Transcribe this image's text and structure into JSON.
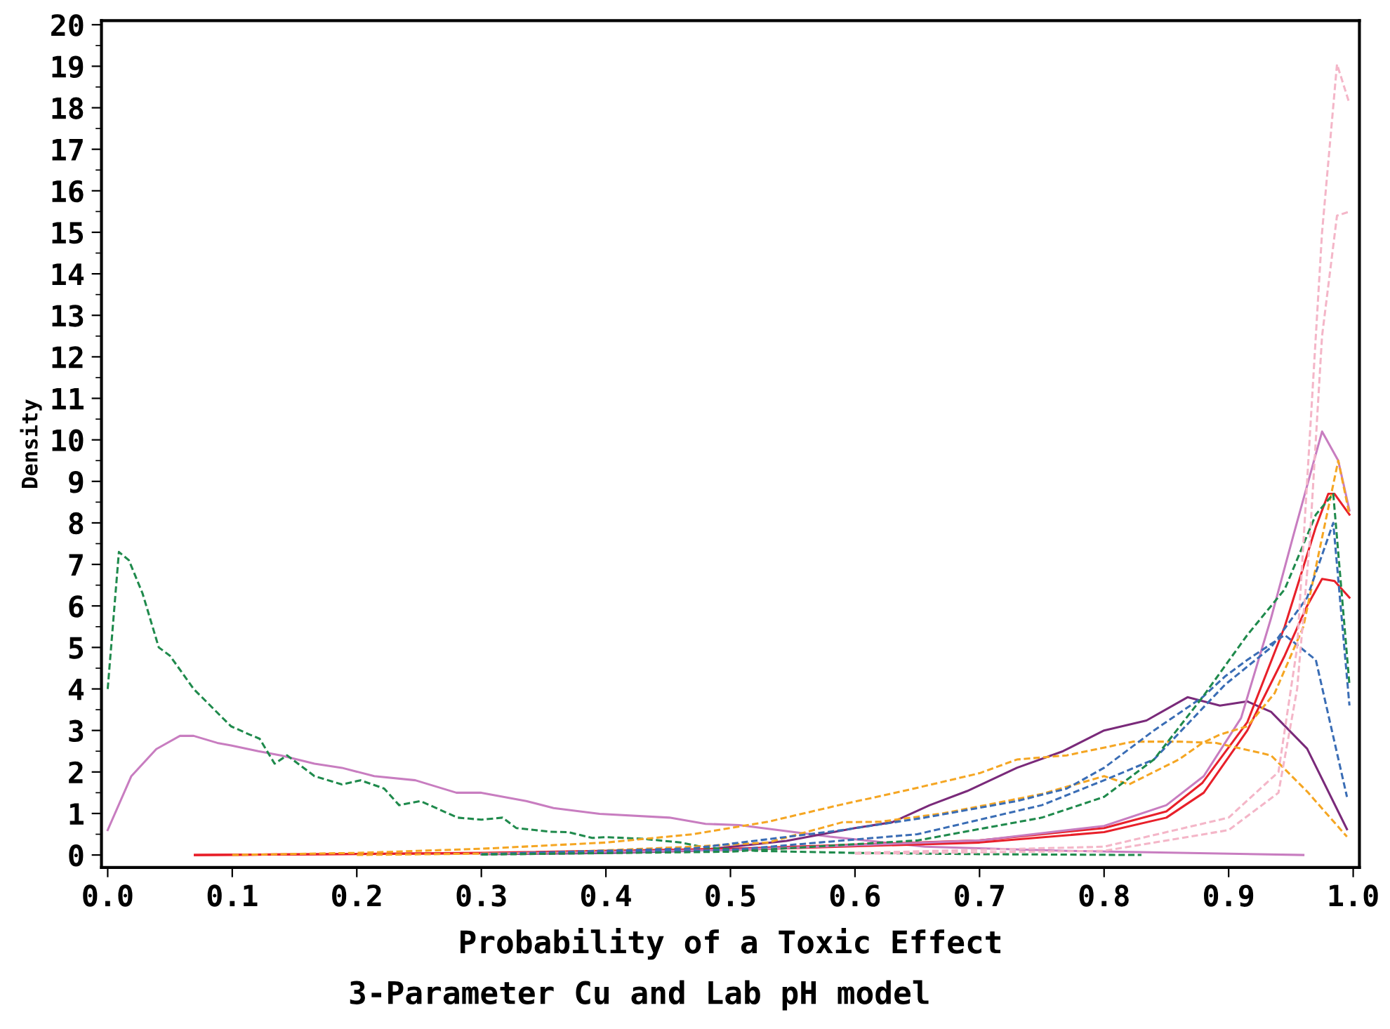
{
  "chart_data": {
    "type": "line",
    "title": "3-Parameter Cu and Lab pH model",
    "xlabel": "Probability of a Toxic Effect",
    "ylabel": "Density",
    "xlim": [
      -0.005,
      1.005
    ],
    "ylim": [
      -0.3,
      20.1
    ],
    "xticks": [
      {
        "value": 0,
        "label": "0.0"
      },
      0.1,
      0.2,
      0.3,
      0.4,
      0.5,
      0.6,
      0.7,
      0.8,
      0.9,
      {
        "value": 1,
        "label": "1.0"
      }
    ],
    "yticks": [
      0,
      1,
      2,
      3,
      4,
      5,
      6,
      7,
      8,
      9,
      10,
      11,
      12,
      13,
      14,
      15,
      16,
      17,
      18,
      19,
      20
    ],
    "grid": false,
    "legend": false,
    "marker": "none",
    "series": [
      {
        "color": "#1f8a4c",
        "line_style": "dashed",
        "x": [
          0.0,
          0.009,
          0.017,
          0.028,
          0.041,
          0.05,
          0.069,
          0.099,
          0.114,
          0.122,
          0.134,
          0.144,
          0.166,
          0.188,
          0.203,
          0.222,
          0.234,
          0.251,
          0.281,
          0.3,
          0.317,
          0.328,
          0.355,
          0.37,
          0.389,
          0.4,
          0.43,
          0.46,
          0.48,
          0.52,
          0.6,
          0.7,
          0.83
        ],
        "values": [
          4.0,
          7.3,
          7.1,
          6.3,
          5.0,
          4.8,
          4.0,
          3.1,
          2.9,
          2.8,
          2.2,
          2.4,
          1.9,
          1.7,
          1.8,
          1.6,
          1.2,
          1.3,
          0.9,
          0.85,
          0.9,
          0.65,
          0.56,
          0.55,
          0.41,
          0.43,
          0.39,
          0.3,
          0.18,
          0.1,
          0.05,
          0.02,
          0.0
        ]
      },
      {
        "color": "#c87dc0",
        "line_style": "solid",
        "x": [
          0.0,
          0.019,
          0.039,
          0.058,
          0.069,
          0.088,
          0.099,
          0.121,
          0.139,
          0.166,
          0.188,
          0.214,
          0.247,
          0.28,
          0.3,
          0.336,
          0.358,
          0.395,
          0.451,
          0.48,
          0.507,
          0.58,
          0.656,
          0.77,
          0.96
        ],
        "values": [
          0.6,
          1.9,
          2.55,
          2.87,
          2.87,
          2.7,
          2.64,
          2.5,
          2.4,
          2.2,
          2.1,
          1.9,
          1.8,
          1.5,
          1.5,
          1.3,
          1.13,
          0.99,
          0.9,
          0.75,
          0.72,
          0.44,
          0.2,
          0.1,
          0.0
        ]
      },
      {
        "color": "#7a2a7a",
        "line_style": "solid",
        "x": [
          0.3,
          0.4,
          0.47,
          0.545,
          0.6,
          0.63,
          0.66,
          0.69,
          0.73,
          0.767,
          0.8,
          0.834,
          0.867,
          0.893,
          0.915,
          0.934,
          0.963,
          0.995
        ],
        "values": [
          0.02,
          0.05,
          0.1,
          0.34,
          0.65,
          0.79,
          1.2,
          1.54,
          2.1,
          2.5,
          3.0,
          3.24,
          3.8,
          3.6,
          3.7,
          3.45,
          2.56,
          0.62
        ]
      },
      {
        "color": "#f5a623",
        "line_style": "dashed",
        "x": [
          0.1,
          0.2,
          0.3,
          0.4,
          0.47,
          0.53,
          0.587,
          0.643,
          0.7,
          0.73,
          0.77,
          0.823,
          0.86,
          0.89,
          0.934,
          0.963,
          0.995
        ],
        "values": [
          0.0,
          0.05,
          0.15,
          0.3,
          0.5,
          0.8,
          1.2,
          1.57,
          1.97,
          2.3,
          2.4,
          2.73,
          2.73,
          2.7,
          2.4,
          1.53,
          0.44
        ]
      },
      {
        "color": "#f5a623",
        "line_style": "dashed",
        "x": [
          0.2,
          0.35,
          0.47,
          0.53,
          0.59,
          0.62,
          0.67,
          0.71,
          0.75,
          0.8,
          0.82,
          0.84,
          0.86,
          0.879,
          0.893,
          0.915,
          0.937,
          0.96,
          0.988,
          0.997
        ],
        "values": [
          0.0,
          0.05,
          0.2,
          0.3,
          0.79,
          0.8,
          1.0,
          1.23,
          1.47,
          1.9,
          1.7,
          2.0,
          2.3,
          2.7,
          2.9,
          3.1,
          3.9,
          5.5,
          9.5,
          8.2
        ]
      },
      {
        "color": "#3a6db5",
        "line_style": "dashed",
        "x": [
          0.3,
          0.47,
          0.59,
          0.656,
          0.73,
          0.77,
          0.8,
          0.84,
          0.879,
          0.897,
          0.915,
          0.945,
          0.97,
          0.995
        ],
        "values": [
          0.02,
          0.16,
          0.6,
          0.9,
          1.3,
          1.6,
          2.1,
          3.0,
          3.8,
          4.3,
          4.7,
          5.3,
          4.7,
          1.4
        ]
      },
      {
        "color": "#3a6db5",
        "line_style": "dashed",
        "x": [
          0.3,
          0.5,
          0.65,
          0.75,
          0.8,
          0.84,
          0.897,
          0.934,
          0.963,
          0.984,
          0.997
        ],
        "values": [
          0.02,
          0.12,
          0.5,
          1.2,
          1.8,
          2.3,
          4.1,
          5.0,
          6.2,
          8.0,
          3.6
        ]
      },
      {
        "color": "#1f8a4c",
        "line_style": "dashed",
        "x": [
          0.3,
          0.5,
          0.65,
          0.75,
          0.8,
          0.84,
          0.879,
          0.915,
          0.945,
          0.97,
          0.984,
          0.997
        ],
        "values": [
          0.01,
          0.08,
          0.35,
          0.9,
          1.4,
          2.3,
          3.8,
          5.3,
          6.4,
          8.2,
          8.7,
          4.1
        ]
      },
      {
        "color": "#e8202a",
        "line_style": "solid",
        "x": [
          0.07,
          0.3,
          0.5,
          0.7,
          0.8,
          0.85,
          0.879,
          0.915,
          0.945,
          0.97,
          0.98,
          0.985,
          0.997
        ],
        "values": [
          0.0,
          0.05,
          0.15,
          0.35,
          0.65,
          1.05,
          1.74,
          3.2,
          5.5,
          7.9,
          8.7,
          8.7,
          8.2
        ]
      },
      {
        "color": "#e8202a",
        "line_style": "solid",
        "x": [
          0.07,
          0.3,
          0.5,
          0.7,
          0.8,
          0.85,
          0.88,
          0.915,
          0.945,
          0.963,
          0.975,
          0.985,
          0.997
        ],
        "values": [
          0.0,
          0.04,
          0.12,
          0.3,
          0.55,
          0.9,
          1.5,
          3.0,
          4.8,
          6.0,
          6.65,
          6.6,
          6.2
        ]
      },
      {
        "color": "#c87dc0",
        "line_style": "solid",
        "x": [
          0.3,
          0.5,
          0.7,
          0.8,
          0.85,
          0.88,
          0.91,
          0.934,
          0.952,
          0.975,
          0.988,
          0.997
        ],
        "values": [
          0.03,
          0.12,
          0.35,
          0.7,
          1.2,
          1.9,
          3.3,
          5.7,
          7.7,
          10.2,
          9.5,
          8.3
        ]
      },
      {
        "color": "#f4b6c8",
        "line_style": "dashed",
        "x": [
          0.6,
          0.8,
          0.9,
          0.94,
          0.955,
          0.965,
          0.975,
          0.987,
          0.997
        ],
        "values": [
          0.05,
          0.2,
          0.9,
          2.0,
          5.0,
          10.0,
          15.0,
          19.05,
          18.1
        ]
      },
      {
        "color": "#f4b6c8",
        "line_style": "dashed",
        "x": [
          0.6,
          0.8,
          0.9,
          0.94,
          0.955,
          0.965,
          0.975,
          0.987,
          0.997
        ],
        "values": [
          0.03,
          0.1,
          0.6,
          1.5,
          4.0,
          7.5,
          12.5,
          15.4,
          15.5
        ]
      }
    ]
  }
}
